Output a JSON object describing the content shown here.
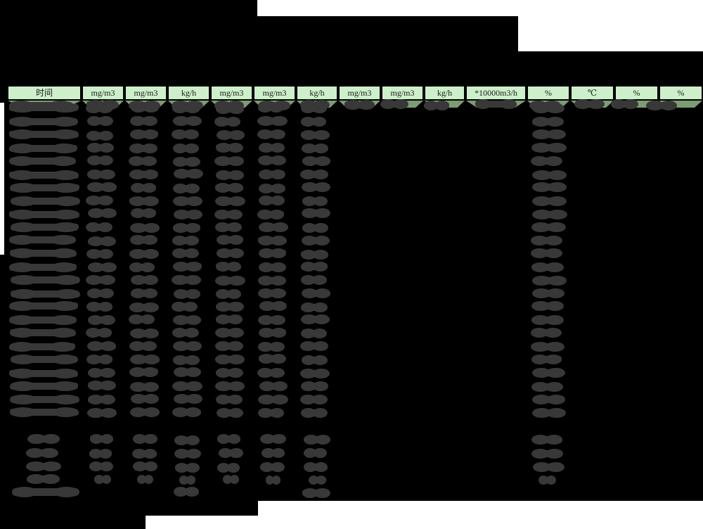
{
  "page": {
    "colors": {
      "paper": "#ffffff",
      "redaction_block": "#000000",
      "redaction_blob": "#383838",
      "header_bg": "#cdf0ca",
      "subheader_bg": "#7d9c74",
      "border": "#000000",
      "header_text": "#1b1b1b"
    }
  },
  "table": {
    "unit_headers": [
      "时间",
      "mg/m3",
      "mg/m3",
      "kg/h",
      "mg/m3",
      "mg/m3",
      "kg/h",
      "mg/m3",
      "mg/m3",
      "kg/h",
      "*10000m3/h",
      "%",
      "℃",
      "%",
      "%"
    ],
    "redactions": {
      "title_block_redacted": true,
      "subheader_row_redacted": true,
      "data_row_count": 24,
      "summary_row_count": 4,
      "total_row_count": 1,
      "columns_with_data_values": [
        0,
        1,
        2,
        3,
        4,
        5,
        6,
        11
      ],
      "columns_with_summary_values": [
        0,
        1,
        2,
        3,
        4,
        5,
        6,
        11
      ],
      "columns_with_total_values": [
        0,
        3,
        6
      ]
    }
  }
}
